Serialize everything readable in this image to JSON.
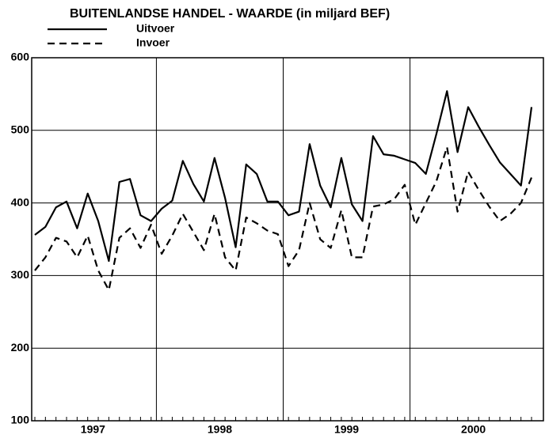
{
  "chart_data": {
    "type": "line",
    "title": "BUITENLANDSE HANDEL - WAARDE (in miljard BEF)",
    "categories": [
      null,
      null,
      null,
      null,
      null,
      "1997",
      null,
      null,
      null,
      null,
      null,
      null,
      null,
      null,
      null,
      null,
      null,
      "1998",
      null,
      null,
      null,
      null,
      null,
      null,
      null,
      null,
      null,
      null,
      null,
      "1999",
      null,
      null,
      null,
      null,
      null,
      null,
      null,
      null,
      null,
      null,
      null,
      "2000",
      null,
      null,
      null,
      null,
      null,
      null
    ],
    "series": [
      {
        "name": "Uitvoer",
        "color": "#000000",
        "style": "solid",
        "values": [
          356,
          367,
          394,
          402,
          365,
          413,
          375,
          320,
          429,
          433,
          383,
          375,
          392,
          403,
          458,
          426,
          402,
          462,
          407,
          339,
          453,
          440,
          402,
          402,
          383,
          388,
          481,
          424,
          394,
          462,
          398,
          375,
          492,
          467,
          465,
          460,
          455,
          440,
          495,
          554,
          470,
          532,
          505,
          480,
          456,
          440,
          424,
          532
        ]
      },
      {
        "name": "Invoer",
        "color": "#000000",
        "style": "dashed",
        "values": [
          307,
          325,
          352,
          347,
          325,
          355,
          307,
          280,
          352,
          365,
          338,
          370,
          330,
          355,
          385,
          360,
          335,
          385,
          325,
          307,
          380,
          372,
          362,
          357,
          313,
          335,
          400,
          350,
          338,
          390,
          325,
          325,
          395,
          398,
          405,
          425,
          370,
          400,
          430,
          477,
          388,
          443,
          418,
          395,
          375,
          385,
          400,
          435
        ]
      }
    ],
    "ylim": [
      100,
      600
    ],
    "yticks": [
      100,
      200,
      300,
      400,
      500,
      600
    ],
    "grid": true
  }
}
